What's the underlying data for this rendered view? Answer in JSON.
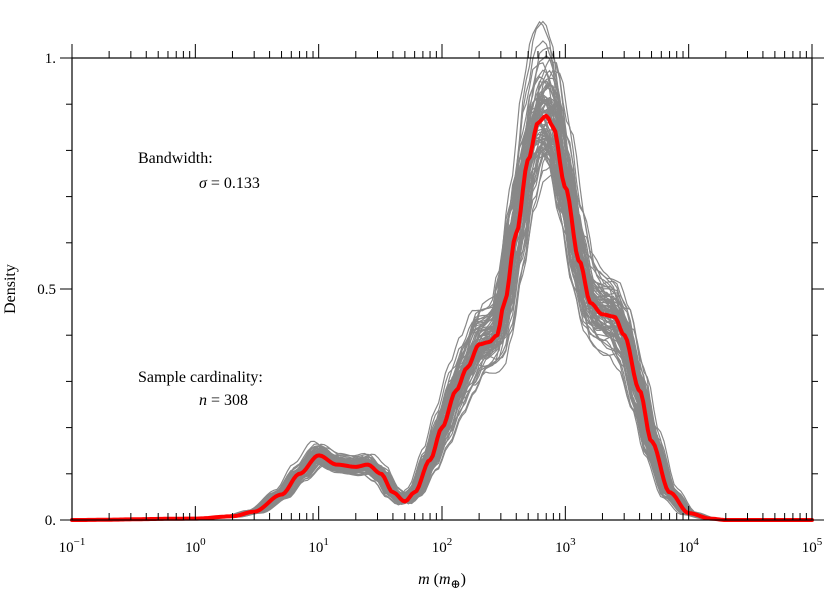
{
  "chart_data": {
    "type": "line",
    "xscale": "log",
    "xlim": [
      0.1,
      100000
    ],
    "ylim": [
      0,
      1
    ],
    "xlabel": {
      "var": "m",
      "unit_open": " (",
      "unit_var": "m",
      "unit_sub": "⊕",
      "unit_close": ")"
    },
    "ylabel": "Density",
    "x_tick_labels": [
      {
        "base": "10",
        "exp": "−1"
      },
      {
        "base": "10",
        "exp": "0"
      },
      {
        "base": "10",
        "exp": "1"
      },
      {
        "base": "10",
        "exp": "2"
      },
      {
        "base": "10",
        "exp": "3"
      },
      {
        "base": "10",
        "exp": "4"
      },
      {
        "base": "10",
        "exp": "5"
      }
    ],
    "y_tick_labels": [
      "0.",
      "0.5",
      "1."
    ],
    "annotations": {
      "bandwidth_label": "Bandwidth:",
      "bandwidth_symbol": "σ",
      "bandwidth_value": " = 0.133",
      "cardinality_label": "Sample cardinality:",
      "cardinality_symbol": "n",
      "cardinality_value": " = 308"
    },
    "main_series": {
      "color": "#ff0000",
      "x": [
        0.1,
        1,
        2,
        3,
        5,
        7,
        10,
        14,
        20,
        25,
        32,
        40,
        50,
        60,
        80,
        100,
        130,
        160,
        200,
        240,
        280,
        320,
        400,
        500,
        600,
        700,
        800,
        1000,
        1300,
        1600,
        2000,
        2500,
        3000,
        4000,
        5000,
        7000,
        10000,
        15000,
        20000,
        30000,
        100000
      ],
      "y": [
        0.0,
        0.003,
        0.008,
        0.018,
        0.055,
        0.1,
        0.14,
        0.12,
        0.115,
        0.12,
        0.1,
        0.06,
        0.04,
        0.06,
        0.13,
        0.2,
        0.28,
        0.33,
        0.38,
        0.385,
        0.4,
        0.47,
        0.62,
        0.78,
        0.86,
        0.875,
        0.85,
        0.72,
        0.56,
        0.47,
        0.445,
        0.44,
        0.4,
        0.28,
        0.17,
        0.06,
        0.015,
        0.003,
        0.0,
        0.0,
        0.0
      ]
    },
    "bootstrap_series": {
      "color": "#888888",
      "count": 80,
      "seed": 7
    }
  }
}
